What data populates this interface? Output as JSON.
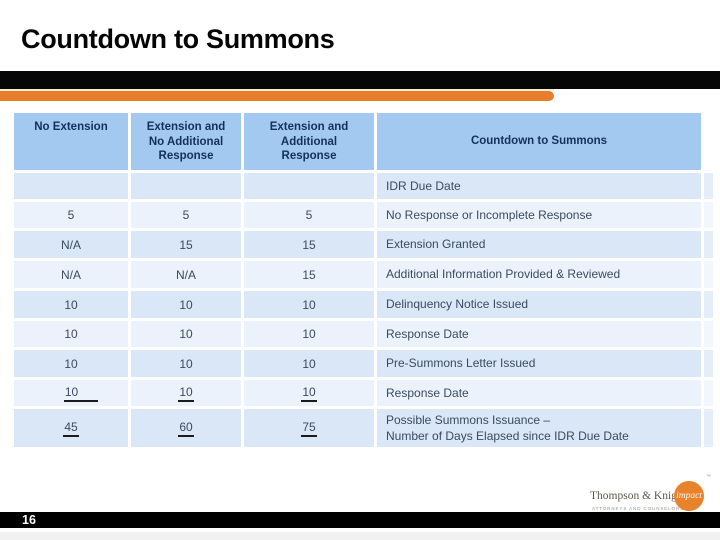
{
  "slide": {
    "title": "Countdown to Summons",
    "page_number": "16"
  },
  "colors": {
    "accent_orange": "#E87E2B",
    "divider_black": "#060606",
    "cream_line": "#F6EDD5",
    "header_blue": "#A4C9F0",
    "header_text": "#14305E",
    "row_dark": "#D9E7F6",
    "row_light": "#EBF2FB",
    "edge_strip_dark": "#E4EDF8",
    "edge_strip_light": "#F2F7FD",
    "body_text": "#3A4A61",
    "underline": "#1B1B1B",
    "footer_bar": "#000000"
  },
  "table": {
    "headers": [
      "No Extension",
      "Extension and\nNo Additional\nResponse",
      "Extension and\nAdditional\nResponse",
      "Countdown to Summons"
    ],
    "rows": [
      {
        "c1": "",
        "c2": "",
        "c3": "",
        "label": "IDR Due Date"
      },
      {
        "c1": "5",
        "c2": "5",
        "c3": "5",
        "label": "No Response or Incomplete Response"
      },
      {
        "c1": "N/A",
        "c2": "15",
        "c3": "15",
        "label": "Extension Granted"
      },
      {
        "c1": "N/A",
        "c2": "N/A",
        "c3": "15",
        "label": "Additional Information Provided & Reviewed"
      },
      {
        "c1": "10",
        "c2": "10",
        "c3": "10",
        "label": "Delinquency Notice Issued"
      },
      {
        "c1": "10",
        "c2": "10",
        "c3": "10",
        "label": "Response Date"
      },
      {
        "c1": "10",
        "c2": "10",
        "c3": "10",
        "label": "Pre-Summons Letter Issued"
      },
      {
        "c1": "10",
        "c2": "10",
        "c3": "10",
        "label": "Response Date",
        "underline": true,
        "underline_extended": true
      },
      {
        "c1": "45",
        "c2": "60",
        "c3": "75",
        "label": "Possible Summons Issuance –\nNumber of Days Elapsed since IDR Due Date",
        "underline": true
      }
    ]
  },
  "logo": {
    "name": "Thompson & Knight",
    "tagline": "ATTORNEYS AND COUNSELORS",
    "badge": "impact",
    "trademark": "™"
  }
}
